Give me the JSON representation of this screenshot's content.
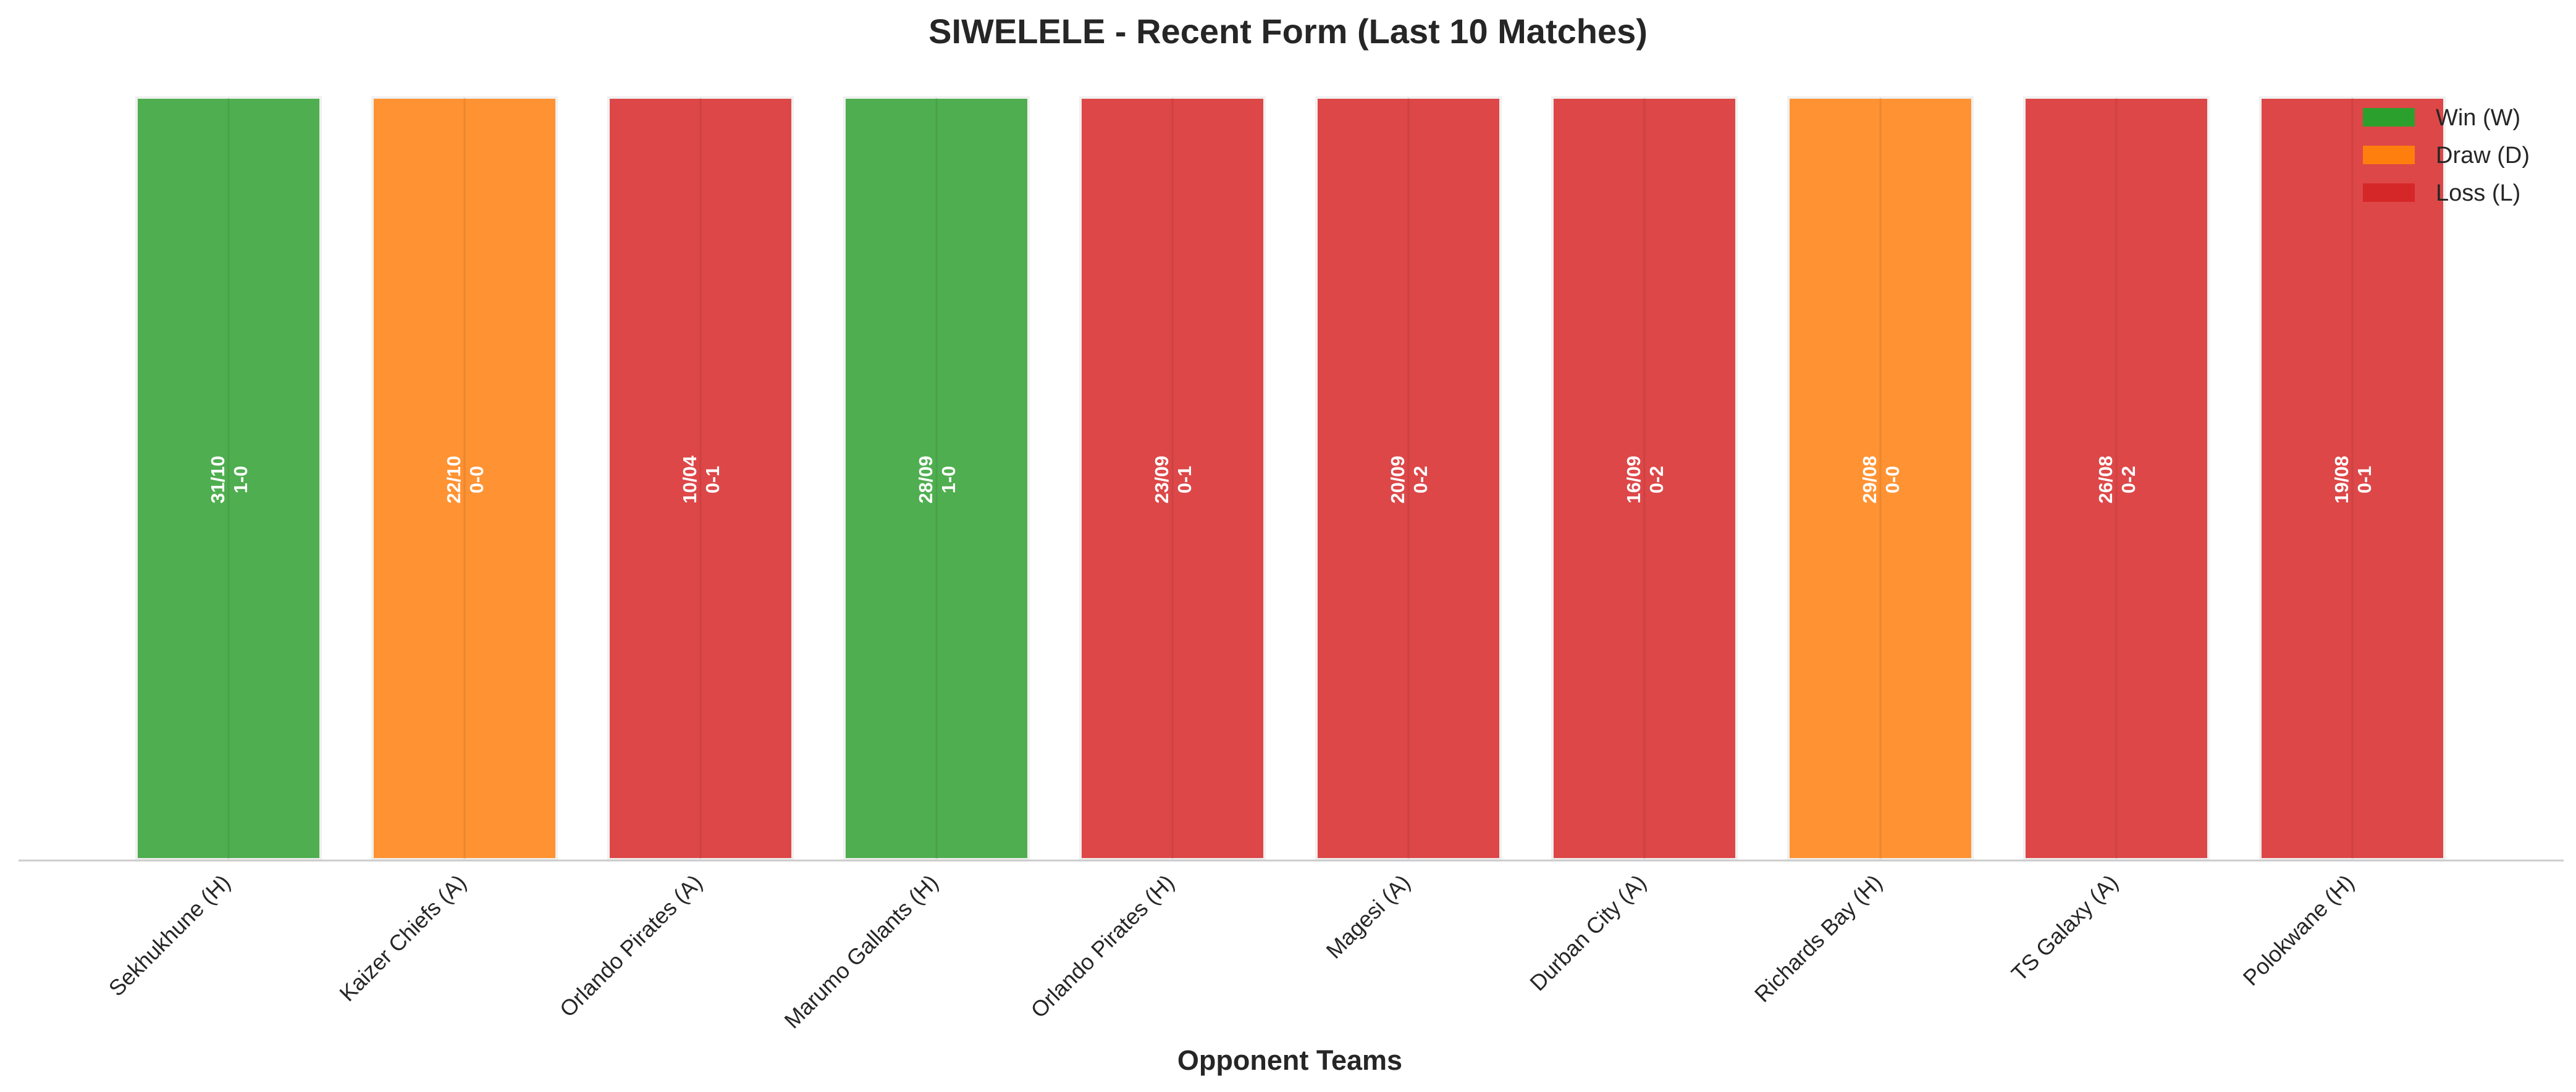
{
  "chart_data": {
    "type": "bar",
    "title": "SIWELELE - Recent Form (Last 10 Matches)",
    "xlabel": "Opponent Teams",
    "ylabel": "",
    "ylim": [
      0,
      1
    ],
    "grid": false,
    "legend_position": "top-right",
    "categories": [
      "Sekhukhune (H)",
      "Kaizer Chiefs (A)",
      "Orlando Pirates (A)",
      "Marumo Gallants (H)",
      "Orlando Pirates (H)",
      "Magesi (A)",
      "Durban City (A)",
      "Richards Bay (H)",
      "TS Galaxy (A)",
      "Polokwane (H)"
    ],
    "values": [
      1,
      1,
      1,
      1,
      1,
      1,
      1,
      1,
      1,
      1
    ],
    "results": [
      "W",
      "D",
      "L",
      "W",
      "L",
      "L",
      "L",
      "D",
      "L",
      "L"
    ],
    "dates": [
      "31/10",
      "22/10",
      "10/04",
      "28/09",
      "23/09",
      "20/09",
      "16/09",
      "29/08",
      "26/08",
      "19/08"
    ],
    "scores": [
      "1-0",
      "0-0",
      "0-1",
      "1-0",
      "0-1",
      "0-2",
      "0-2",
      "0-0",
      "0-2",
      "0-1"
    ],
    "legend": [
      {
        "key": "W",
        "label": "Win (W)",
        "color": "#2ca02c"
      },
      {
        "key": "D",
        "label": "Draw (D)",
        "color": "#ff7f0e"
      },
      {
        "key": "L",
        "label": "Loss (L)",
        "color": "#d62728"
      }
    ],
    "bar_colors": {
      "W": "#4fae4f",
      "D": "#ff9232",
      "L": "#dd4748"
    }
  }
}
